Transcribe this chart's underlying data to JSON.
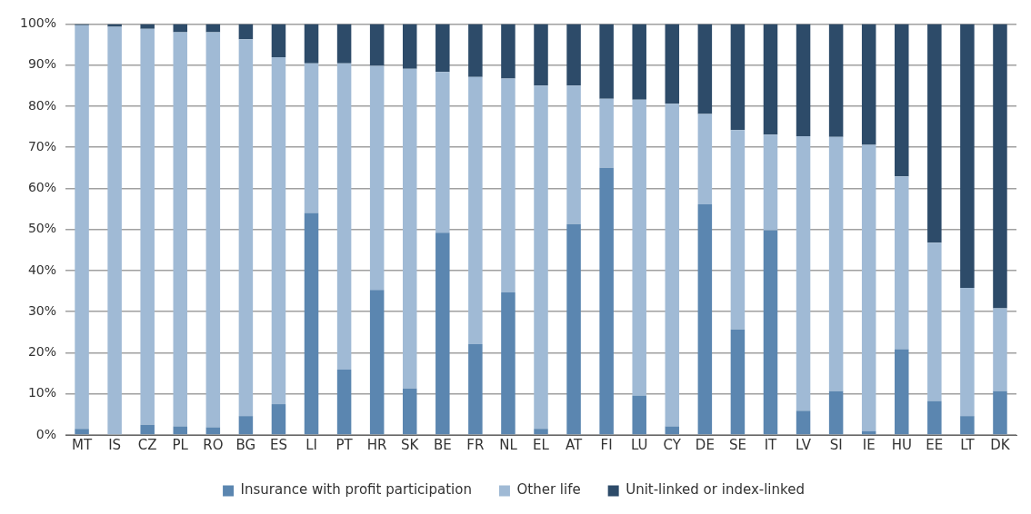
{
  "chart_data": {
    "type": "bar",
    "stacked": true,
    "categories": [
      "MT",
      "IS",
      "CZ",
      "PL",
      "RO",
      "BG",
      "ES",
      "LI",
      "PT",
      "HR",
      "SK",
      "BE",
      "FR",
      "NL",
      "EL",
      "AT",
      "FI",
      "LU",
      "CY",
      "DE",
      "SE",
      "IT",
      "LV",
      "SI",
      "IE",
      "HU",
      "EE",
      "LT",
      "DK"
    ],
    "series": [
      {
        "name": "Insurance with profit participation",
        "color": "#5b86b0",
        "values": [
          1.5,
          0,
          2.5,
          2.1,
          1.9,
          4.6,
          7.5,
          54,
          15.9,
          35.3,
          11.3,
          49.2,
          22.1,
          34.7,
          1.5,
          51.3,
          65,
          9.6,
          2.1,
          56.1,
          25.7,
          49.8,
          5.9,
          10.7,
          0.9,
          20.9,
          8.2,
          4.6,
          10.7
        ]
      },
      {
        "name": "Other life",
        "color": "#a0bad5",
        "values": [
          98.2,
          99.3,
          96.3,
          95.9,
          96.1,
          91.7,
          84.4,
          36.4,
          74.5,
          54.5,
          77.8,
          39.1,
          65,
          52,
          83.5,
          33.7,
          16.8,
          72,
          78.5,
          22,
          48.5,
          23.3,
          66.8,
          61.8,
          69.7,
          42,
          38.6,
          31.2,
          20.1
        ]
      },
      {
        "name": "Unit-linked or index-linked",
        "color": "#2d4b69",
        "values": [
          0.3,
          0.7,
          1.2,
          2,
          2,
          3.7,
          8.1,
          9.6,
          9.6,
          10.2,
          10.9,
          11.7,
          12.9,
          13.3,
          15,
          15,
          18.2,
          18.4,
          19.4,
          21.9,
          25.8,
          26.9,
          27.3,
          27.5,
          29.4,
          37.1,
          53.2,
          64.2,
          69.2
        ]
      }
    ],
    "ylim": [
      0,
      100
    ],
    "yticks": [
      {
        "value": 0,
        "label": "0%"
      },
      {
        "value": 10,
        "label": "10%"
      },
      {
        "value": 20,
        "label": "20%"
      },
      {
        "value": 30,
        "label": "30%"
      },
      {
        "value": 40,
        "label": "40%"
      },
      {
        "value": 50,
        "label": "50%"
      },
      {
        "value": 60,
        "label": "60%"
      },
      {
        "value": 70,
        "label": "70%"
      },
      {
        "value": 80,
        "label": "80%"
      },
      {
        "value": 90,
        "label": "90%"
      },
      {
        "value": 100,
        "label": "100%"
      }
    ],
    "grid": "y",
    "legend": "bottom"
  }
}
